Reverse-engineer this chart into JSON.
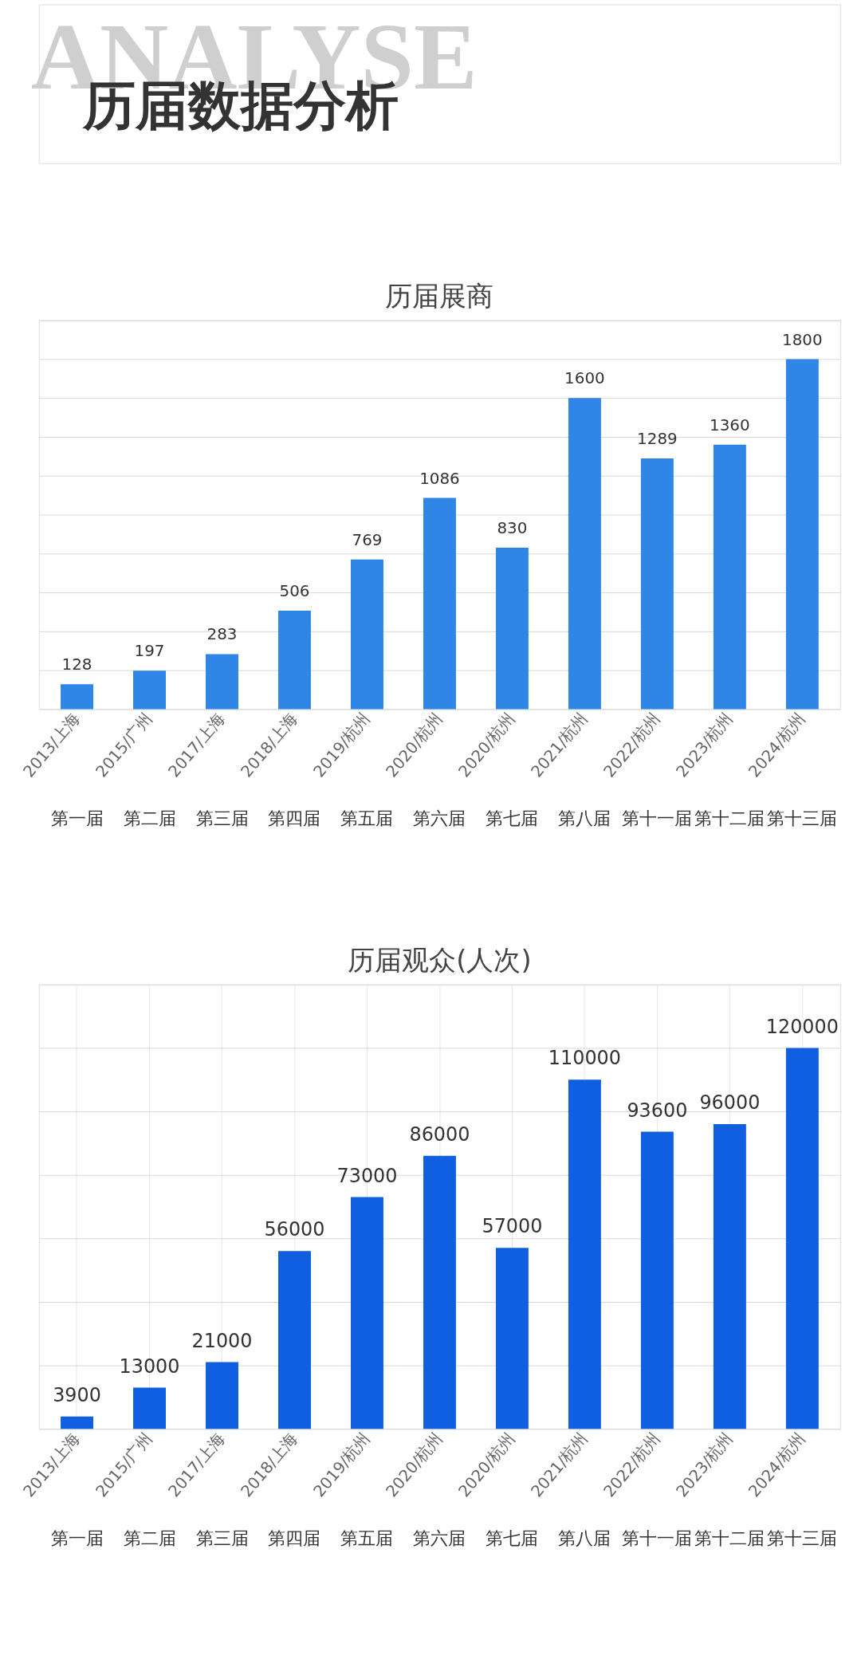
{
  "chart_data": [
    {
      "type": "other",
      "title": "历届数据分析",
      "annotations": [
        "ANALYSE"
      ]
    },
    {
      "type": "bar",
      "title": "历届展商",
      "categories": [
        "2013/上海",
        "2015/广州",
        "2017/上海",
        "2018/上海",
        "2019/杭州",
        "2020/杭州",
        "2020/杭州",
        "2021/杭州",
        "2022/杭州",
        "2023/杭州",
        "2024/杭州"
      ],
      "annotations": [
        "第一届",
        "第二届",
        "第三届",
        "第四届",
        "第五届",
        "第六届",
        "第七届",
        "第八届",
        "第十一届",
        "第十二届",
        "第十三届"
      ],
      "values": [
        128,
        197,
        283,
        506,
        769,
        1086,
        830,
        1600,
        1289,
        1360,
        1800
      ],
      "color": "#2f86e6",
      "ylim": [
        0,
        2000
      ],
      "yticks": [
        {
          "value": 0,
          "label": null
        },
        {
          "value": 200,
          "label": null
        },
        {
          "value": 400,
          "label": null
        },
        {
          "value": 600,
          "label": null
        },
        {
          "value": 800,
          "label": null
        },
        {
          "value": 1000,
          "label": null
        },
        {
          "value": 1200,
          "label": null
        },
        {
          "value": 1400,
          "label": null
        },
        {
          "value": 1600,
          "label": null
        },
        {
          "value": 1800,
          "label": null
        },
        {
          "value": 2000,
          "label": null
        }
      ],
      "tick_labels": "x",
      "grid": "y",
      "data_labels": true
    },
    {
      "type": "bar",
      "title": "历届观众(人次)",
      "categories": [
        "2013/上海",
        "2015/广州",
        "2017/上海",
        "2018/上海",
        "2019/杭州",
        "2020/杭州",
        "2020/杭州",
        "2021/杭州",
        "2022/杭州",
        "2023/杭州",
        "2024/杭州"
      ],
      "annotations": [
        "第一届",
        "第二届",
        "第三届",
        "第四届",
        "第五届",
        "第六届",
        "第七届",
        "第八届",
        "第十一届",
        "第十二届",
        "第十三届"
      ],
      "values": [
        3900,
        13000,
        21000,
        56000,
        73000,
        86000,
        57000,
        110000,
        93600,
        96000,
        120000
      ],
      "color": "#0f5fe0",
      "ylim": [
        0,
        140000
      ],
      "yticks": [
        {
          "value": 0,
          "label": null
        },
        {
          "value": 20000,
          "label": null
        },
        {
          "value": 40000,
          "label": null
        },
        {
          "value": 60000,
          "label": null
        },
        {
          "value": 80000,
          "label": null
        },
        {
          "value": 100000,
          "label": null
        },
        {
          "value": 120000,
          "label": null
        },
        {
          "value": 140000,
          "label": null
        }
      ],
      "tick_labels": "x",
      "grid": true,
      "data_labels": true
    }
  ]
}
